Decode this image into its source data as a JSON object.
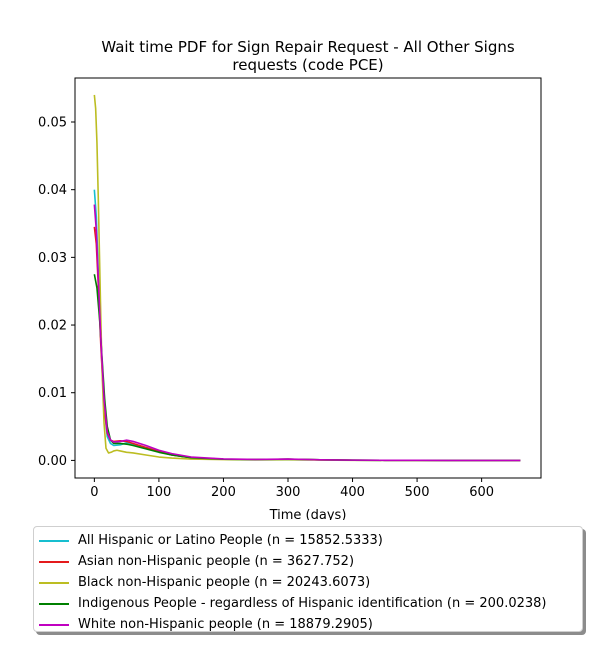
{
  "chart_data": {
    "type": "line",
    "title_line1": "Wait time PDF for Sign Repair Request - All Other Signs",
    "title_line2": "requests (code PCE)",
    "xlabel": "Time (days)",
    "ylabel": "",
    "xlim": [
      -30,
      692
    ],
    "ylim": [
      -0.0026,
      0.0565
    ],
    "xticks": [
      0,
      100,
      200,
      300,
      400,
      500,
      600
    ],
    "yticks": [
      0.0,
      0.01,
      0.02,
      0.03,
      0.04,
      0.05
    ],
    "ytick_labels": [
      "0.00",
      "0.01",
      "0.02",
      "0.03",
      "0.04",
      "0.05"
    ],
    "grid": false,
    "legend_position": "below plot",
    "series": [
      {
        "name": "All Hispanic or Latino People (n = 15852.5333)",
        "color": "#17becf",
        "x": [
          0,
          3,
          6,
          10,
          15,
          20,
          25,
          30,
          40,
          50,
          60,
          80,
          100,
          120,
          150,
          200,
          250,
          300,
          350,
          400,
          450,
          500,
          550,
          600,
          660
        ],
        "y": [
          0.04,
          0.036,
          0.028,
          0.018,
          0.008,
          0.0035,
          0.0025,
          0.0022,
          0.0023,
          0.0026,
          0.0024,
          0.0019,
          0.0013,
          0.0008,
          0.0004,
          0.00018,
          0.00012,
          0.00018,
          8e-05,
          3e-05,
          2e-05,
          1e-05,
          0.0,
          0.0,
          0.0
        ]
      },
      {
        "name": "Asian non-Hispanic people (n = 3627.752)",
        "color": "#e41a1c",
        "x": [
          0,
          3,
          6,
          10,
          15,
          20,
          25,
          30,
          40,
          50,
          60,
          80,
          100,
          120,
          150,
          200,
          250,
          300,
          350,
          400,
          450,
          500,
          550,
          600,
          660
        ],
        "y": [
          0.0345,
          0.032,
          0.026,
          0.017,
          0.008,
          0.004,
          0.003,
          0.0028,
          0.0029,
          0.0028,
          0.0025,
          0.0019,
          0.0013,
          0.0008,
          0.0004,
          0.00018,
          0.00012,
          0.00018,
          8e-05,
          3e-05,
          2e-05,
          1e-05,
          0.0,
          0.0,
          0.0
        ]
      },
      {
        "name": "Black non-Hispanic people (n = 20243.6073)",
        "color": "#bcbd22",
        "x": [
          0,
          2,
          4,
          6,
          8,
          10,
          12,
          15,
          18,
          22,
          26,
          30,
          35,
          40,
          50,
          60,
          80,
          100,
          120,
          150,
          200,
          250,
          300,
          350,
          400,
          450,
          500,
          550,
          600,
          660
        ],
        "y": [
          0.054,
          0.052,
          0.047,
          0.039,
          0.03,
          0.021,
          0.013,
          0.0055,
          0.0018,
          0.0011,
          0.0012,
          0.0014,
          0.0015,
          0.0014,
          0.0012,
          0.0011,
          0.0008,
          0.0005,
          0.00035,
          0.0002,
          0.00012,
          8e-05,
          0.0001,
          5e-05,
          2e-05,
          1e-05,
          0.0,
          0.0,
          0.0,
          0.0
        ]
      },
      {
        "name": "Indigenous People - regardless of Hispanic identification (n = 200.0238)",
        "color": "#008000",
        "x": [
          0,
          4,
          8,
          12,
          16,
          20,
          25,
          30,
          40,
          50,
          60,
          80,
          100,
          120,
          150,
          200,
          250,
          300,
          350,
          400,
          450,
          500,
          550,
          600,
          660
        ],
        "y": [
          0.0275,
          0.0255,
          0.021,
          0.015,
          0.009,
          0.005,
          0.003,
          0.0025,
          0.0025,
          0.0024,
          0.0022,
          0.0017,
          0.0012,
          0.0008,
          0.0004,
          0.00018,
          0.00012,
          0.00018,
          8e-05,
          3e-05,
          2e-05,
          1e-05,
          0.0,
          0.0,
          0.0
        ]
      },
      {
        "name": "White non-Hispanic people (n = 18879.2905)",
        "color": "#c000c0",
        "x": [
          0,
          3,
          6,
          10,
          15,
          20,
          25,
          30,
          40,
          50,
          60,
          80,
          100,
          120,
          150,
          200,
          250,
          300,
          350,
          400,
          450,
          500,
          550,
          600,
          660
        ],
        "y": [
          0.0378,
          0.034,
          0.027,
          0.018,
          0.009,
          0.0042,
          0.003,
          0.0027,
          0.0028,
          0.003,
          0.0028,
          0.0022,
          0.0015,
          0.001,
          0.0005,
          0.00022,
          0.00014,
          0.0002,
          9e-05,
          4e-05,
          2e-05,
          1e-05,
          0.0,
          0.0,
          0.0
        ]
      }
    ]
  }
}
